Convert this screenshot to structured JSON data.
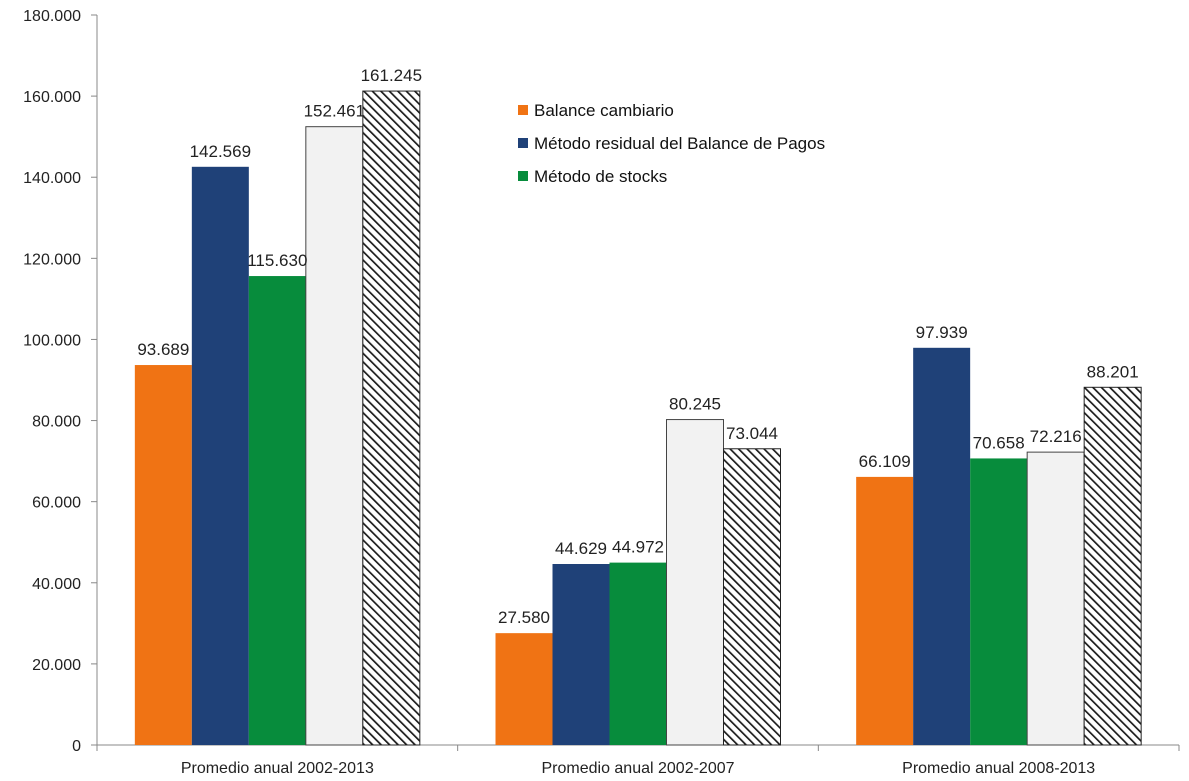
{
  "chart_data": {
    "type": "bar",
    "categories": [
      "Promedio anual 2002-2013",
      "Promedio anual 2002-2007",
      "Promedio anual 2008-2013"
    ],
    "series": [
      {
        "name": "Balance cambiario",
        "color": "#f07314",
        "values": [
          93689,
          27580,
          66109
        ],
        "labels": [
          "93.689",
          "27.580",
          "66.109"
        ]
      },
      {
        "name": "Método residual del Balance de Pagos",
        "color": "#1f4178",
        "values": [
          142569,
          44629,
          97939
        ],
        "labels": [
          "142.569",
          "44.629",
          "97.939"
        ]
      },
      {
        "name": "Método de stocks",
        "color": "#078c3c",
        "values": [
          115630,
          44972,
          70658
        ],
        "labels": [
          "115.630",
          "44.972",
          "70.658"
        ]
      },
      {
        "color": "#f2f2f2",
        "values": [
          152461,
          80245,
          72216
        ],
        "labels": [
          "152.461",
          "80.245",
          "72.216"
        ]
      },
      {
        "pattern": "diagonal-hatch",
        "values": [
          161245,
          73044,
          88201
        ],
        "labels": [
          "161.245",
          "73.044",
          "88.201"
        ]
      }
    ],
    "ylim": [
      0,
      180000
    ],
    "yticks": [
      0,
      20000,
      40000,
      60000,
      80000,
      100000,
      120000,
      140000,
      160000,
      180000
    ],
    "ytick_labels": [
      "0",
      "20.000",
      "40.000",
      "60.000",
      "80.000",
      "100.000",
      "120.000",
      "140.000",
      "160.000",
      "180.000"
    ],
    "grid": false,
    "legend_position": "top-center"
  },
  "legend": {
    "items": [
      {
        "label": "Balance cambiario",
        "color": "#f07314"
      },
      {
        "label": "Método residual del Balance de Pagos",
        "color": "#1f4178"
      },
      {
        "label": "Método de stocks",
        "color": "#078c3c"
      }
    ]
  }
}
